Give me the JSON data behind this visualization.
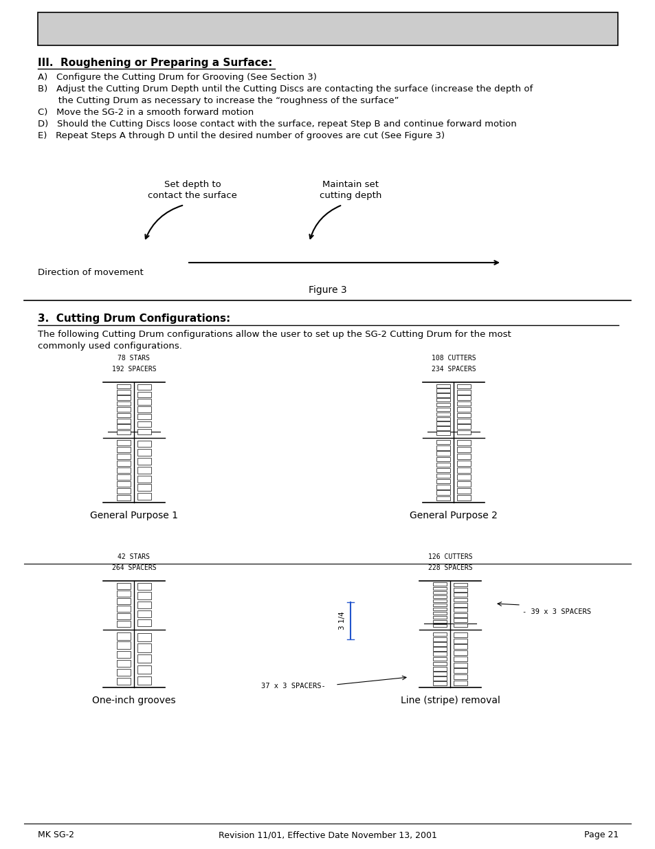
{
  "bg_color": "#ffffff",
  "text_color": "#000000",
  "header_box_color": "#cccccc",
  "header_box_border": "#000000",
  "section_III_title": "III.  Roughening or Preparing a Surface:",
  "section_III_items": [
    "A)   Configure the Cutting Drum for Grooving (See Section 3)",
    "B)   Adjust the Cutting Drum Depth until the Cutting Discs are contacting the surface (increase the depth of",
    "       the Cutting Drum as necessary to increase the “roughness of the surface”",
    "C)   Move the SG-2 in a smooth forward motion",
    "D)   Should the Cutting Discs loose contact with the surface, repeat Step B and continue forward motion",
    "E)   Repeat Steps A through D until the desired number of grooves are cut (See Figure 3)"
  ],
  "fig3_label1_line1": "Set depth to",
  "fig3_label1_line2": "contact the surface",
  "fig3_label2_line1": "Maintain set",
  "fig3_label2_line2": "cutting depth",
  "fig3_direction": "Direction of movement",
  "fig3_caption": "Figure 3",
  "section3_title": "3.  Cutting Drum Configurations:",
  "section3_desc1": "The following Cutting Drum configurations allow the user to set up the SG-2 Cutting Drum for the most",
  "section3_desc2": "commonly used configurations.",
  "config1_line1": "78 STARS",
  "config1_line2": "192 SPACERS",
  "config1_label": "General Purpose 1",
  "config2_line1": "108 CUTTERS",
  "config2_line2": "234 SPACERS",
  "config2_label": "General Purpose 2",
  "config3_line1": "42 STARS",
  "config3_line2": "264 SPACERS",
  "config3_label": "One-inch grooves",
  "config4_line1": "126 CUTTERS",
  "config4_line2": "228 SPACERS",
  "config4_label": "Line (stripe) removal",
  "config4_annot1": "- 39 x 3 SPACERS",
  "config4_annot2": "37 x 3 SPACERS-",
  "config4_dim": "3 1/4",
  "footer_left": "MK SG-2",
  "footer_center": "Revision 11/01, Effective Date November 13, 2001",
  "footer_right": "Page 21"
}
